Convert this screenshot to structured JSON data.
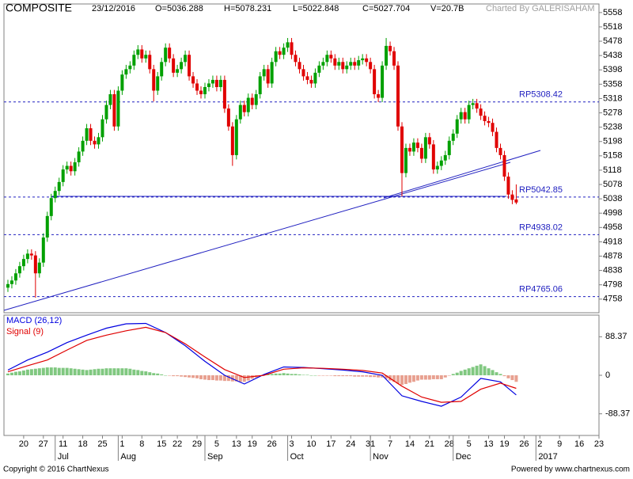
{
  "chart_data": {
    "type": "candlestick",
    "header": {
      "symbol": "COMPOSITE",
      "date": "23/12/2016",
      "open": "O=5036.288",
      "high": "H=5078.231",
      "low": "L=5022.848",
      "close": "C=5027.704",
      "volume": "V=20.7B",
      "credit": "Charted By GALERISAHAM"
    },
    "footer": {
      "left": "Copyright © 2016 ChartNexus",
      "right": "Powered by www.chartnexus.com"
    },
    "up_color": "#00a000",
    "down_color": "#e00000",
    "open": [
      4790,
      4800,
      4810,
      4830,
      4850,
      4870,
      4885,
      4880,
      4830,
      4860,
      4930,
      4990,
      5040,
      5060,
      5085,
      5120,
      5130,
      5115,
      5140,
      5170,
      5200,
      5235,
      5200,
      5190,
      5210,
      5260,
      5300,
      5330,
      5240,
      5340,
      5385,
      5400,
      5410,
      5440,
      5455,
      5430,
      5440,
      5400,
      5340,
      5380,
      5420,
      5460,
      5430,
      5390,
      5400,
      5420,
      5440,
      5380,
      5360,
      5340,
      5330,
      5350,
      5360,
      5370,
      5350,
      5370,
      5290,
      5240,
      5160,
      5260,
      5300,
      5280,
      5320,
      5300,
      5330,
      5380,
      5400,
      5360,
      5420,
      5450,
      5440,
      5460,
      5475,
      5440,
      5420,
      5400,
      5380,
      5370,
      5360,
      5390,
      5410,
      5420,
      5440,
      5430,
      5410,
      5420,
      5400,
      5410,
      5420,
      5410,
      5425,
      5430,
      5420,
      5400,
      5330,
      5320,
      5410,
      5465,
      5450,
      5410,
      5240,
      5110,
      5180,
      5170,
      5195,
      5180,
      5150,
      5210,
      5190,
      5120,
      5130,
      5145,
      5160,
      5200,
      5220,
      5260,
      5280,
      5260,
      5300,
      5305,
      5290,
      5270,
      5255,
      5250,
      5225,
      5180,
      5160,
      5100,
      5050,
      5036.288
    ],
    "high": [
      4812,
      4822,
      4842,
      4862,
      4882,
      4897,
      4897,
      4892,
      4872,
      4942,
      5002,
      5052,
      5072,
      5097,
      5132,
      5142,
      5142,
      5152,
      5182,
      5212,
      5247,
      5247,
      5212,
      5222,
      5272,
      5312,
      5342,
      5342,
      5352,
      5397,
      5412,
      5422,
      5452,
      5467,
      5467,
      5452,
      5452,
      5412,
      5392,
      5432,
      5472,
      5472,
      5442,
      5412,
      5432,
      5452,
      5452,
      5392,
      5372,
      5352,
      5362,
      5372,
      5382,
      5382,
      5382,
      5382,
      5302,
      5252,
      5272,
      5312,
      5312,
      5332,
      5332,
      5342,
      5392,
      5412,
      5412,
      5432,
      5462,
      5462,
      5472,
      5487,
      5487,
      5452,
      5432,
      5412,
      5392,
      5382,
      5402,
      5422,
      5432,
      5452,
      5452,
      5442,
      5432,
      5432,
      5422,
      5432,
      5432,
      5437,
      5442,
      5442,
      5432,
      5412,
      5342,
      5422,
      5487,
      5477,
      5462,
      5422,
      5252,
      5192,
      5192,
      5207,
      5207,
      5192,
      5222,
      5222,
      5202,
      5142,
      5157,
      5172,
      5212,
      5232,
      5272,
      5292,
      5292,
      5312,
      5317,
      5317,
      5302,
      5282,
      5267,
      5262,
      5237,
      5192,
      5172,
      5112,
      5062,
      5078.231
    ],
    "low": [
      4778,
      4788,
      4798,
      4818,
      4838,
      4858,
      4868,
      4762,
      4818,
      4848,
      4918,
      4978,
      5028,
      5048,
      5073,
      5108,
      5103,
      5103,
      5128,
      5158,
      5188,
      5188,
      5178,
      5178,
      5198,
      5248,
      5288,
      5228,
      5228,
      5328,
      5373,
      5388,
      5398,
      5428,
      5418,
      5418,
      5388,
      5310,
      5328,
      5368,
      5408,
      5418,
      5378,
      5378,
      5388,
      5408,
      5368,
      5348,
      5328,
      5318,
      5318,
      5338,
      5348,
      5338,
      5338,
      5278,
      5228,
      5130,
      5148,
      5248,
      5268,
      5268,
      5288,
      5288,
      5318,
      5368,
      5348,
      5348,
      5408,
      5428,
      5428,
      5448,
      5428,
      5408,
      5388,
      5368,
      5358,
      5348,
      5348,
      5378,
      5398,
      5408,
      5418,
      5398,
      5398,
      5388,
      5388,
      5398,
      5398,
      5398,
      5413,
      5408,
      5388,
      5318,
      5308,
      5308,
      5398,
      5438,
      5398,
      5228,
      5045,
      5098,
      5158,
      5158,
      5168,
      5138,
      5138,
      5178,
      5108,
      5108,
      5118,
      5133,
      5148,
      5188,
      5208,
      5248,
      5248,
      5248,
      5288,
      5278,
      5258,
      5243,
      5238,
      5213,
      5168,
      5148,
      5088,
      5038,
      5023,
      5022.848
    ],
    "close": [
      4800,
      4810,
      4830,
      4850,
      4870,
      4885,
      4880,
      4830,
      4860,
      4930,
      4990,
      5040,
      5060,
      5085,
      5120,
      5130,
      5115,
      5140,
      5170,
      5200,
      5235,
      5200,
      5190,
      5210,
      5260,
      5300,
      5330,
      5240,
      5340,
      5385,
      5400,
      5410,
      5440,
      5455,
      5430,
      5440,
      5400,
      5340,
      5380,
      5420,
      5460,
      5430,
      5390,
      5400,
      5420,
      5440,
      5380,
      5360,
      5340,
      5330,
      5350,
      5360,
      5370,
      5350,
      5370,
      5290,
      5240,
      5160,
      5260,
      5300,
      5280,
      5320,
      5300,
      5330,
      5380,
      5400,
      5360,
      5420,
      5450,
      5440,
      5460,
      5475,
      5440,
      5420,
      5400,
      5380,
      5370,
      5360,
      5390,
      5410,
      5420,
      5440,
      5430,
      5410,
      5420,
      5400,
      5410,
      5420,
      5410,
      5425,
      5430,
      5420,
      5400,
      5330,
      5320,
      5410,
      5465,
      5450,
      5410,
      5240,
      5110,
      5180,
      5170,
      5195,
      5180,
      5150,
      5210,
      5190,
      5120,
      5130,
      5145,
      5160,
      5200,
      5220,
      5260,
      5280,
      5260,
      5300,
      5305,
      5290,
      5270,
      5255,
      5250,
      5225,
      5180,
      5160,
      5100,
      5050,
      5035,
      5027.704
    ],
    "ylim": [
      4720,
      5582
    ],
    "yticks": [
      5558,
      5518,
      5478,
      5438,
      5398,
      5358,
      5318,
      5278,
      5238,
      5198,
      5158,
      5118,
      5078,
      5038,
      4998,
      4958,
      4918,
      4878,
      4838,
      4798,
      4758
    ],
    "xlim": [
      -1,
      150
    ],
    "xticks": [
      {
        "value": 4,
        "label": "20"
      },
      {
        "value": 9,
        "label": "27"
      },
      {
        "value": 14,
        "label": "11"
      },
      {
        "value": 19,
        "label": "18"
      },
      {
        "value": 24,
        "label": "25"
      },
      {
        "value": 29,
        "label": "1"
      },
      {
        "value": 34,
        "label": "8"
      },
      {
        "value": 39,
        "label": "15"
      },
      {
        "value": 43,
        "label": "22"
      },
      {
        "value": 48,
        "label": "29"
      },
      {
        "value": 53,
        "label": "5"
      },
      {
        "value": 58,
        "label": "13"
      },
      {
        "value": 62,
        "label": "19"
      },
      {
        "value": 67,
        "label": "26"
      },
      {
        "value": 72,
        "label": "3"
      },
      {
        "value": 77,
        "label": "10"
      },
      {
        "value": 82,
        "label": "17"
      },
      {
        "value": 87,
        "label": "24"
      },
      {
        "value": 92,
        "label": "31"
      },
      {
        "value": 97,
        "label": "7"
      },
      {
        "value": 102,
        "label": "14"
      },
      {
        "value": 107,
        "label": "21"
      },
      {
        "value": 112,
        "label": "28"
      },
      {
        "value": 117,
        "label": "5"
      },
      {
        "value": 122,
        "label": "13"
      },
      {
        "value": 126,
        "label": "19"
      },
      {
        "value": 131,
        "label": "26"
      },
      {
        "value": 135,
        "label": "2"
      },
      {
        "value": 140,
        "label": "9"
      },
      {
        "value": 145,
        "label": "16"
      },
      {
        "value": 150,
        "label": "23"
      }
    ],
    "months": [
      {
        "value": 12,
        "label": "Jul"
      },
      {
        "value": 28,
        "label": "Aug"
      },
      {
        "value": 50,
        "label": "Sep"
      },
      {
        "value": 71,
        "label": "Oct"
      },
      {
        "value": 92,
        "label": "Nov"
      },
      {
        "value": 113,
        "label": "Dec"
      },
      {
        "value": 134,
        "label": "2017"
      }
    ],
    "ref_lines": [
      {
        "value": 5308.42,
        "label": "RP5308.42"
      },
      {
        "value": 5042.85,
        "label": "RP5042.85"
      },
      {
        "value": 4938.02,
        "label": "RP4938.02"
      },
      {
        "value": 4765.06,
        "label": "RP4765.06"
      }
    ],
    "ref_color": "#2020c0",
    "macd_panel": {
      "ylim": [
        -138,
        138
      ],
      "yticks": [
        88.37,
        0,
        -88.37
      ],
      "macd": {
        "name": "MACD (26,12)",
        "color": "#0000e0",
        "x": [
          0,
          5,
          10,
          15,
          20,
          25,
          30,
          35,
          40,
          45,
          50,
          55,
          60,
          65,
          70,
          75,
          80,
          85,
          90,
          95,
          100,
          105,
          110,
          115,
          120,
          125,
          129
        ],
        "values": [
          12,
          35,
          53,
          75,
          92,
          108,
          118,
          119,
          98,
          68,
          32,
          0,
          -20,
          2,
          19,
          18,
          15,
          12,
          8,
          0,
          -47,
          -60,
          -71,
          -50,
          -7,
          -15,
          -45
        ]
      },
      "signal": {
        "name": "Signal (9)",
        "color": "#e00000",
        "x": [
          0,
          5,
          10,
          15,
          20,
          25,
          30,
          35,
          40,
          45,
          50,
          55,
          60,
          65,
          70,
          75,
          80,
          85,
          90,
          95,
          100,
          105,
          110,
          115,
          120,
          125,
          129
        ],
        "values": [
          8,
          22,
          35,
          58,
          80,
          92,
          102,
          110,
          98,
          72,
          42,
          13,
          -5,
          0,
          14,
          17,
          16,
          14,
          11,
          5,
          -25,
          -50,
          -62,
          -60,
          -32,
          -18,
          -30
        ]
      },
      "histogram": {
        "pos_color": "#80c880",
        "neg_color": "#e8a090",
        "values": [
          4,
          6,
          8,
          9,
          11,
          13,
          14,
          15,
          16,
          17,
          18,
          18,
          18,
          17,
          17,
          17,
          16,
          15,
          14,
          13,
          12,
          13,
          14,
          15,
          15,
          16,
          16,
          16,
          16,
          16,
          16,
          15,
          13,
          12,
          10,
          9,
          7,
          5,
          4,
          2,
          0,
          -1,
          -2,
          -2,
          -3,
          -4,
          -5,
          -6,
          -7,
          -9,
          -10,
          -11,
          -11,
          -12,
          -12,
          -13,
          -13,
          -14,
          -14,
          -15,
          -15,
          -12,
          -8,
          -5,
          -1,
          2,
          3,
          3,
          4,
          4,
          5,
          4,
          3,
          3,
          2,
          1,
          1,
          0,
          0,
          -1,
          -1,
          -1,
          -1,
          -2,
          -2,
          -2,
          -2,
          -2,
          -3,
          -3,
          -3,
          -3,
          -4,
          -4,
          -5,
          -5,
          -8,
          -12,
          -15,
          -19,
          -22,
          -20,
          -17,
          -15,
          -12,
          -10,
          -10,
          -10,
          -9,
          -9,
          -9,
          -5,
          -1,
          3,
          6,
          10,
          13,
          16,
          19,
          22,
          25,
          21,
          16,
          12,
          7,
          3,
          -2,
          -7,
          -11,
          -15
        ]
      }
    }
  }
}
